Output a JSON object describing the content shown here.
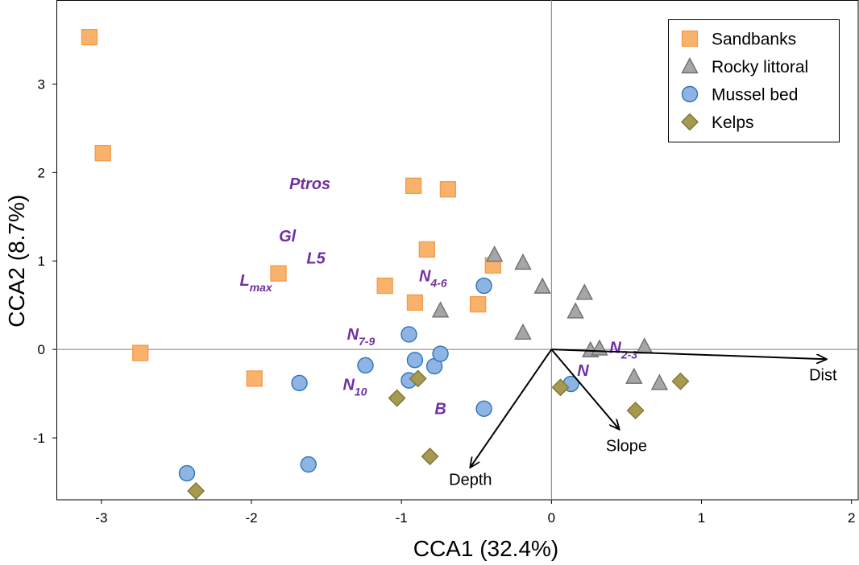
{
  "chart_data": {
    "type": "scatter",
    "title": "",
    "xlabel": "CCA1 (32.4%)",
    "ylabel": "CCA2 (8.7%)",
    "xlim": [
      -3.3,
      2.05
    ],
    "ylim": [
      -1.7,
      3.95
    ],
    "xticks": [
      -3,
      -2,
      -1,
      0,
      1,
      2
    ],
    "yticks": [
      -1,
      0,
      1,
      2,
      3
    ],
    "grid": false,
    "zero_lines": true,
    "legend_position": "top-right",
    "series": [
      {
        "name": "Sandbanks",
        "marker": "square",
        "color": "#F9B26B",
        "edge": "#F39A4A",
        "points": [
          [
            -3.08,
            3.53
          ],
          [
            -2.99,
            2.22
          ],
          [
            -2.74,
            -0.04
          ],
          [
            -1.98,
            -0.33
          ],
          [
            -1.82,
            0.86
          ],
          [
            -1.11,
            0.72
          ],
          [
            -0.92,
            1.85
          ],
          [
            -0.91,
            0.53
          ],
          [
            -0.83,
            1.13
          ],
          [
            -0.69,
            1.81
          ],
          [
            -0.49,
            0.51
          ],
          [
            -0.39,
            0.95
          ]
        ]
      },
      {
        "name": "Rocky littoral",
        "marker": "triangle",
        "color": "#A6A6A6",
        "edge": "#6F6F6F",
        "points": [
          [
            -0.74,
            0.44
          ],
          [
            -0.38,
            1.07
          ],
          [
            -0.19,
            0.98
          ],
          [
            -0.19,
            0.19
          ],
          [
            -0.06,
            0.71
          ],
          [
            0.16,
            0.43
          ],
          [
            0.22,
            0.64
          ],
          [
            0.26,
            -0.01
          ],
          [
            0.32,
            0.01
          ],
          [
            0.55,
            -0.31
          ],
          [
            0.62,
            0.03
          ],
          [
            0.72,
            -0.38
          ]
        ]
      },
      {
        "name": "Mussel bed",
        "marker": "circle",
        "color": "#8DB4E2",
        "edge": "#2E75B6",
        "points": [
          [
            -2.43,
            -1.4
          ],
          [
            -1.68,
            -0.38
          ],
          [
            -1.62,
            -1.3
          ],
          [
            -1.24,
            -0.18
          ],
          [
            -0.95,
            0.17
          ],
          [
            -0.95,
            -0.35
          ],
          [
            -0.91,
            -0.12
          ],
          [
            -0.78,
            -0.19
          ],
          [
            -0.74,
            -0.05
          ],
          [
            -0.45,
            0.72
          ],
          [
            -0.45,
            -0.67
          ],
          [
            0.13,
            -0.39
          ]
        ]
      },
      {
        "name": "Kelps",
        "marker": "diamond",
        "color": "#A59A50",
        "edge": "#7F7636",
        "points": [
          [
            -2.37,
            -1.6
          ],
          [
            -1.03,
            -0.55
          ],
          [
            -0.89,
            -0.33
          ],
          [
            -0.81,
            -1.21
          ],
          [
            0.06,
            -0.43
          ],
          [
            0.56,
            -0.69
          ],
          [
            0.86,
            -0.36
          ]
        ]
      }
    ],
    "species_labels": [
      {
        "base": "Ptros",
        "sub": "",
        "x": -1.61,
        "y": 1.81
      },
      {
        "base": "Gl",
        "sub": "",
        "x": -1.76,
        "y": 1.22
      },
      {
        "base": "L5",
        "sub": "",
        "x": -1.57,
        "y": 0.97
      },
      {
        "base": "L",
        "sub": "max",
        "x": -1.97,
        "y": 0.72
      },
      {
        "base": "N",
        "sub": "4-6",
        "x": -0.79,
        "y": 0.77
      },
      {
        "base": "N",
        "sub": "7-9",
        "x": -1.27,
        "y": 0.11
      },
      {
        "base": "N",
        "sub": "10",
        "x": -1.31,
        "y": -0.46
      },
      {
        "base": "B",
        "sub": "",
        "x": -0.74,
        "y": -0.73
      },
      {
        "base": "N",
        "sub": "2-3",
        "x": 0.48,
        "y": -0.04
      },
      {
        "base": "N",
        "sub": "",
        "x": 0.21,
        "y": -0.3
      }
    ],
    "species_color": "#7030A0",
    "arrows": [
      {
        "name": "Dist",
        "x": 1.83,
        "y": -0.11,
        "label_x": 1.81,
        "label_y": -0.35
      },
      {
        "name": "Slope",
        "x": 0.45,
        "y": -0.9,
        "label_x": 0.5,
        "label_y": -1.15
      },
      {
        "name": "Depth",
        "x": -0.54,
        "y": -1.33,
        "label_x": -0.54,
        "label_y": -1.53
      }
    ]
  }
}
